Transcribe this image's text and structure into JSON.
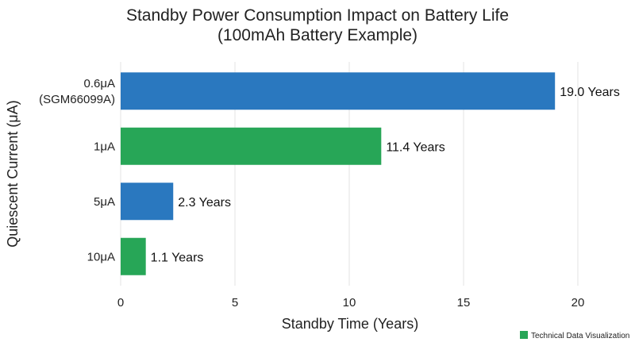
{
  "chart_data": {
    "type": "bar",
    "orientation": "horizontal",
    "title": [
      "Standby Power Consumption Impact on Battery Life",
      "(100mAh Battery Example)"
    ],
    "xlabel": "Standby Time (Years)",
    "ylabel": "Quiescent Current (μA)",
    "xlim": [
      0,
      21
    ],
    "xticks": [
      "0",
      "5",
      "10",
      "15",
      "20"
    ],
    "xtick_values": [
      0,
      5,
      10,
      15,
      20
    ],
    "grid": "vertical",
    "categories": [
      [
        "0.6μA",
        "(SGM66099A)"
      ],
      [
        "1μA"
      ],
      [
        "5μA"
      ],
      [
        "10μA"
      ]
    ],
    "values": [
      19.0,
      11.4,
      2.3,
      1.1
    ],
    "data_labels": [
      "19.0 Years",
      "11.4 Years",
      "2.3 Years",
      "1.1 Years"
    ],
    "bar_colors": [
      "#2a78bf",
      "#27a657",
      "#2a78bf",
      "#27a657"
    ],
    "legend": {
      "placement": "bottom-right",
      "label": "Technical Data Visualization",
      "color": "#27a657"
    }
  }
}
